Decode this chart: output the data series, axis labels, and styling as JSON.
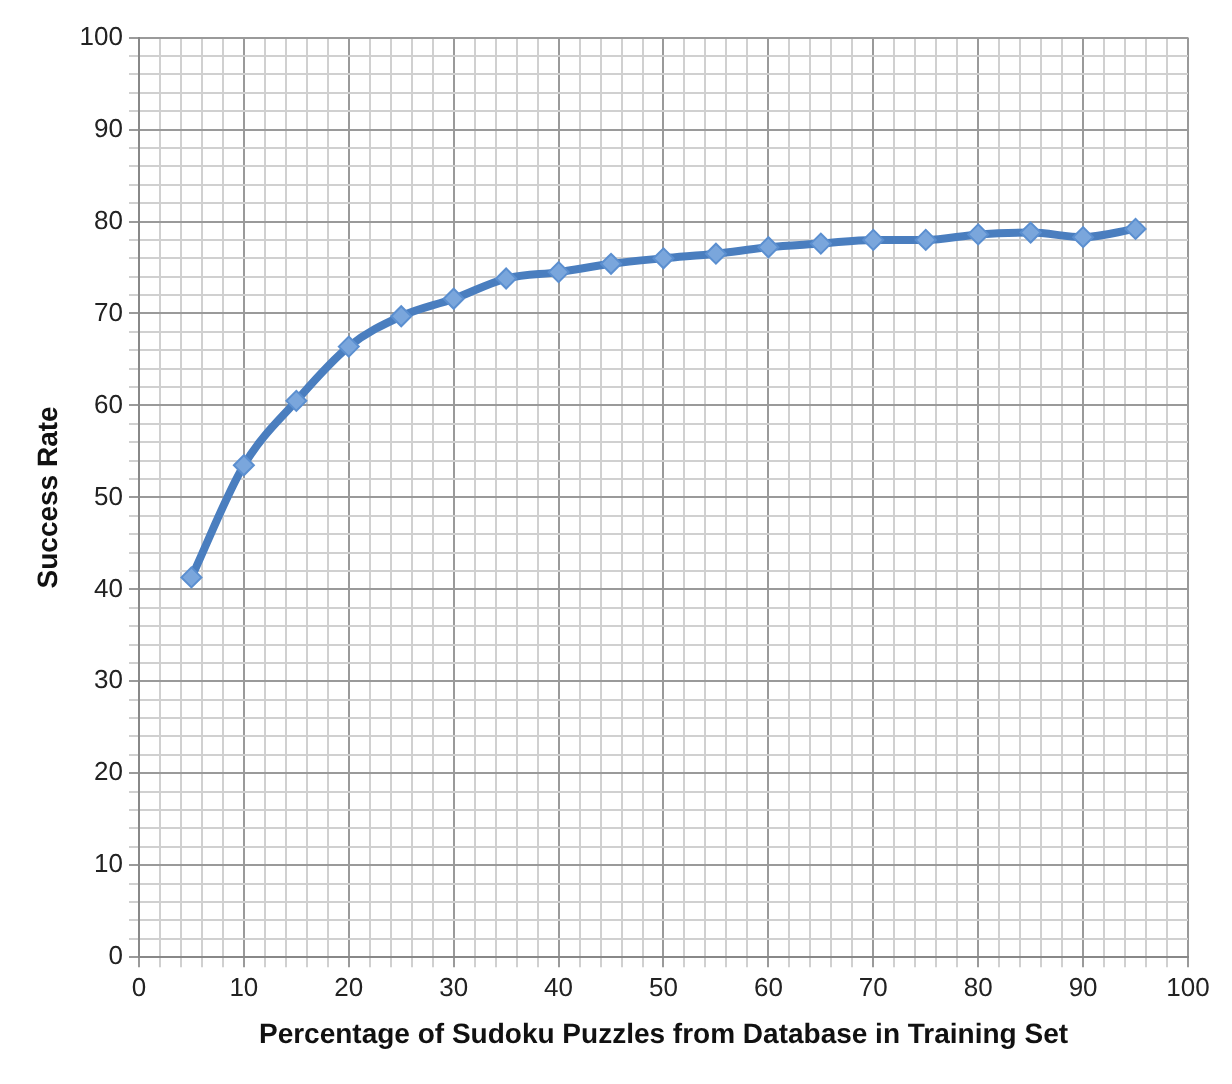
{
  "chart_data": {
    "type": "line",
    "xlabel": "Percentage of Sudoku Puzzles from Database in Training Set",
    "ylabel": "Success Rate",
    "x": [
      5,
      10,
      15,
      20,
      25,
      30,
      35,
      40,
      45,
      50,
      55,
      60,
      65,
      70,
      75,
      80,
      85,
      90,
      95
    ],
    "series": [
      {
        "color": "#4a7ebf",
        "values": [
          41.3,
          53.5,
          60.5,
          66.4,
          69.7,
          71.6,
          73.8,
          74.5,
          75.4,
          76.0,
          76.5,
          77.2,
          77.6,
          78.0,
          78.0,
          78.6,
          78.8,
          78.3,
          79.2
        ]
      }
    ],
    "xlim": [
      0,
      100
    ],
    "xticks": [
      0,
      10,
      20,
      30,
      40,
      50,
      60,
      70,
      80,
      90,
      100
    ],
    "ylim": [
      0,
      100
    ],
    "yticks": [
      0,
      10,
      20,
      30,
      40,
      50,
      60,
      70,
      80,
      90,
      100
    ],
    "grid": true,
    "legend": false,
    "marker": "diamond",
    "line_style": "solid"
  }
}
